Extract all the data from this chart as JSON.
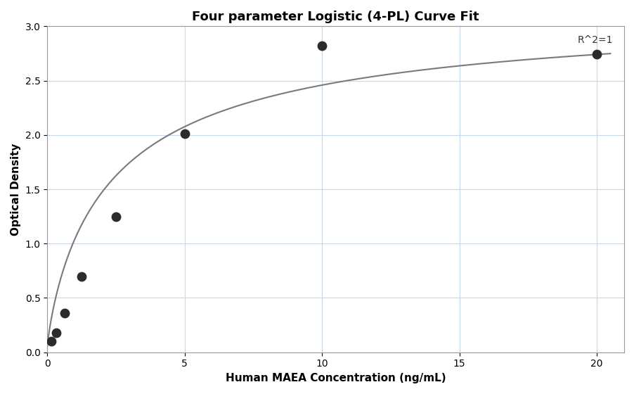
{
  "title": "Four parameter Logistic (4-PL) Curve Fit",
  "xlabel": "Human MAEA Concentration (ng/mL)",
  "ylabel": "Optical Density",
  "annotation": "R^2=1",
  "points_x": [
    0.156,
    0.313,
    0.625,
    1.25,
    2.5,
    5.0,
    10.0,
    20.0
  ],
  "points_y": [
    0.1,
    0.18,
    0.36,
    0.7,
    1.25,
    2.01,
    2.82,
    2.82
  ],
  "xlim": [
    0,
    21
  ],
  "ylim": [
    0,
    3
  ],
  "xticks": [
    0,
    5,
    10,
    15,
    20
  ],
  "yticks": [
    0,
    0.5,
    1.0,
    1.5,
    2.0,
    2.5,
    3.0
  ],
  "dot_color": "#2b2b2b",
  "dot_size": 80,
  "line_color": "#7a7a7a",
  "line_width": 1.5,
  "grid_color": "#c8d8e8",
  "background_color": "#ffffff",
  "title_fontsize": 13,
  "axis_label_fontsize": 11,
  "tick_fontsize": 10,
  "annotation_fontsize": 10,
  "4pl_a": 0.05,
  "4pl_b": 0.85,
  "4pl_c": 2.5,
  "4pl_d": 3.2
}
